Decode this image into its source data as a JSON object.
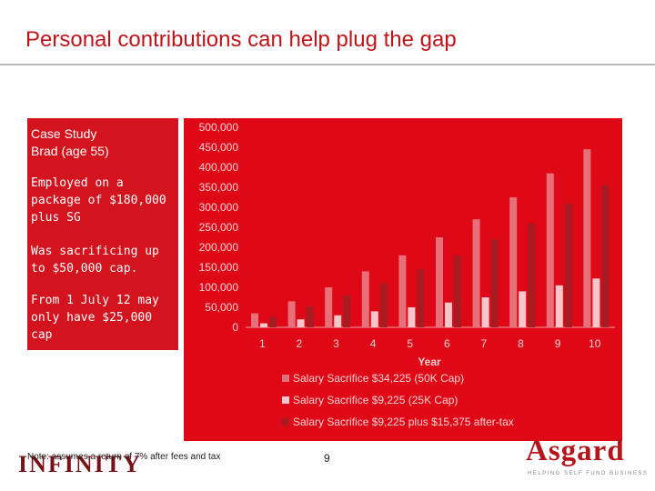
{
  "slide": {
    "title": "Personal contributions can help plug the gap",
    "page_number": "9",
    "footnote": "Note: assumes a return of 7% after fees and tax"
  },
  "case_study": {
    "heading_line1": "Case Study",
    "heading_line2": "Brad (age 55)",
    "paragraphs": [
      "Employed on a package of $180,000 plus SG",
      "Was sacrificing up to $50,000 cap.",
      "From 1 July 12 may only have $25,000 cap"
    ]
  },
  "logos": {
    "left_logo_text": "INFINITY",
    "right_logo_name": "Asgard",
    "right_logo_tagline": "HELPING SELF FUND BUSINESS"
  },
  "colors": {
    "chart_background": "#df0816",
    "case_background": "#d3131d",
    "title": "#c0141b",
    "series": [
      "#e8707a",
      "#f6c6cb",
      "#a61c22"
    ]
  },
  "chart_data": {
    "type": "bar",
    "xlabel": "Year",
    "ylabel": "",
    "ylim": [
      0,
      500000
    ],
    "yticks": [
      "0",
      "50,000",
      "100,000",
      "150,000",
      "200,000",
      "250,000",
      "300,000",
      "350,000",
      "400,000",
      "450,000",
      "500,000"
    ],
    "categories": [
      "1",
      "2",
      "3",
      "4",
      "5",
      "6",
      "7",
      "8",
      "9",
      "10"
    ],
    "grid": false,
    "legend_position": "bottom",
    "series": [
      {
        "name": "Salary Sacrifice $34,225 (50K Cap)",
        "values": [
          35000,
          65000,
          100000,
          140000,
          180000,
          225000,
          270000,
          325000,
          385000,
          445000
        ]
      },
      {
        "name": "Salary Sacrifice $9,225 (25K Cap)",
        "values": [
          10000,
          20000,
          30000,
          40000,
          50000,
          62000,
          75000,
          90000,
          105000,
          122000
        ]
      },
      {
        "name": "Salary Sacrifice $9,225 plus $15,375 after-tax",
        "values": [
          26000,
          52000,
          80000,
          110000,
          145000,
          180000,
          220000,
          260000,
          310000,
          355000
        ]
      }
    ]
  }
}
